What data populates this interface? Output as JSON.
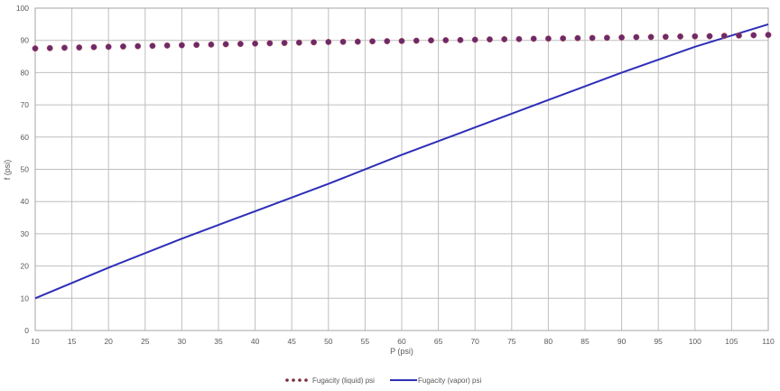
{
  "chart_data": {
    "type": "line",
    "title": "",
    "xlabel": "P (psi)",
    "ylabel": "f (psi)",
    "xlim": [
      10,
      110
    ],
    "ylim": [
      0,
      100
    ],
    "x_ticks": [
      10,
      15,
      20,
      25,
      30,
      35,
      40,
      45,
      50,
      55,
      60,
      65,
      70,
      75,
      80,
      85,
      90,
      95,
      100,
      105,
      110
    ],
    "y_ticks": [
      0,
      10,
      20,
      30,
      40,
      50,
      60,
      70,
      80,
      90,
      100
    ],
    "grid": true,
    "legend_position": "bottom",
    "series": [
      {
        "name": "Fugacity (liquid) psi",
        "style": "dotted-markers",
        "color": "#7030A0",
        "x": [
          10,
          12,
          14,
          16,
          18,
          20,
          22,
          24,
          26,
          28,
          30,
          32,
          34,
          36,
          38,
          40,
          42,
          44,
          46,
          48,
          50,
          52,
          54,
          56,
          58,
          60,
          62,
          64,
          66,
          68,
          70,
          72,
          74,
          76,
          78,
          80,
          82,
          84,
          86,
          88,
          90,
          92,
          94,
          96,
          98,
          100,
          102,
          104,
          106,
          108,
          110
        ],
        "values": [
          87.5,
          87.6,
          87.7,
          87.8,
          87.9,
          88.0,
          88.1,
          88.2,
          88.3,
          88.4,
          88.5,
          88.6,
          88.7,
          88.8,
          88.9,
          89.0,
          89.1,
          89.2,
          89.3,
          89.4,
          89.5,
          89.55,
          89.6,
          89.7,
          89.75,
          89.8,
          89.9,
          90.0,
          90.05,
          90.1,
          90.2,
          90.3,
          90.35,
          90.4,
          90.5,
          90.55,
          90.6,
          90.7,
          90.75,
          90.8,
          90.9,
          91.0,
          91.05,
          91.1,
          91.2,
          91.25,
          91.3,
          91.4,
          91.5,
          91.6,
          91.7
        ]
      },
      {
        "name": "Fugacity (vapor) psi",
        "style": "solid-line",
        "color": "#2E2EB8",
        "x": [
          10,
          20,
          30,
          40,
          50,
          60,
          70,
          80,
          90,
          100,
          105,
          110
        ],
        "values": [
          10,
          19.5,
          28.5,
          37,
          45.5,
          54.5,
          63,
          71.5,
          80,
          88,
          91.5,
          95
        ]
      }
    ]
  },
  "legend": {
    "liquid_label": "Fugacity (liquid) psi",
    "vapor_label": "Fugacity (vapor) psi"
  }
}
